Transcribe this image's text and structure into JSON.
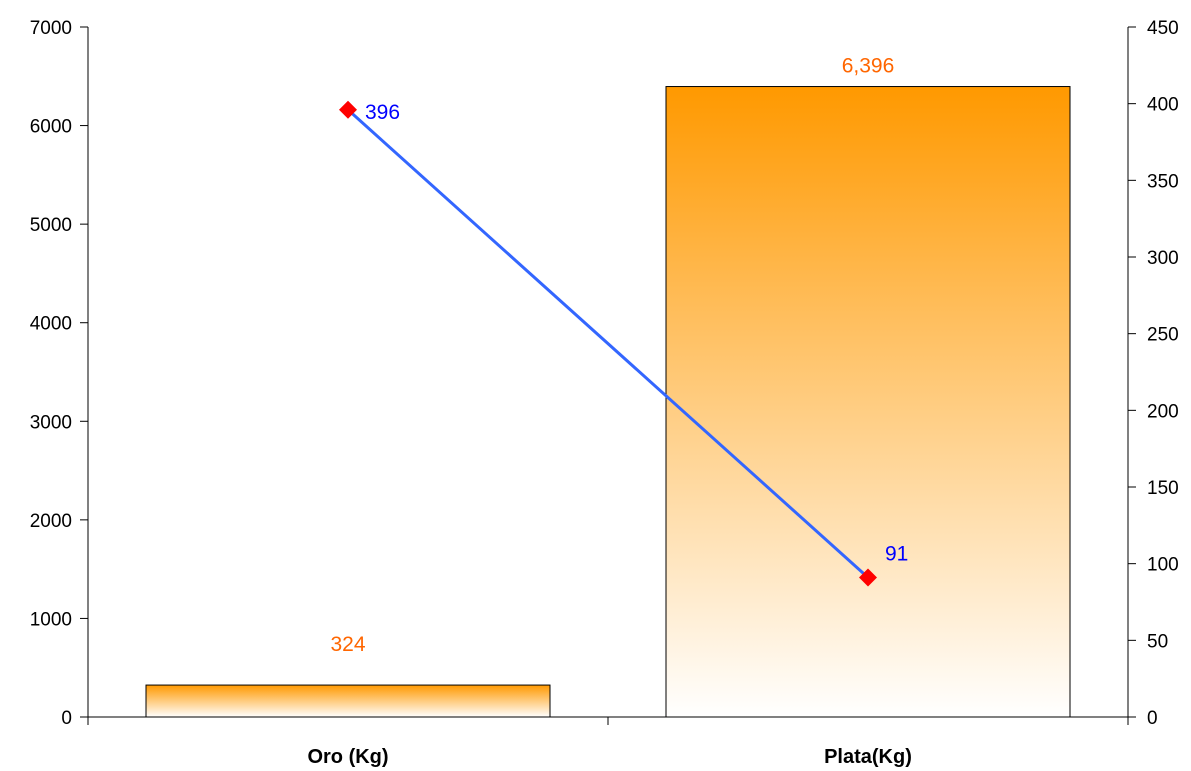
{
  "chart_data": {
    "type": "bar",
    "categories": [
      "Oro (Kg)",
      "Plata(Kg)"
    ],
    "series": [
      {
        "kind": "bar",
        "axis": "left",
        "values": [
          324,
          6396
        ],
        "labels": [
          "324",
          "6,396"
        ],
        "color": "#FF9900",
        "label_color": "#FF6600"
      },
      {
        "kind": "line",
        "axis": "right",
        "values": [
          396,
          91
        ],
        "labels": [
          "396",
          "91"
        ],
        "line_color": "#3366FF",
        "marker_color": "#FF0000",
        "label_color": "#0000FF"
      }
    ],
    "y_left": {
      "lim": [
        0,
        7000
      ],
      "ticks": [
        "0",
        "1000",
        "2000",
        "3000",
        "4000",
        "5000",
        "6000",
        "7000"
      ]
    },
    "y_right": {
      "lim": [
        0,
        450
      ],
      "ticks": [
        "0",
        "50",
        "100",
        "150",
        "200",
        "250",
        "300",
        "350",
        "400",
        "450"
      ]
    },
    "grid": false,
    "legend": "none"
  }
}
